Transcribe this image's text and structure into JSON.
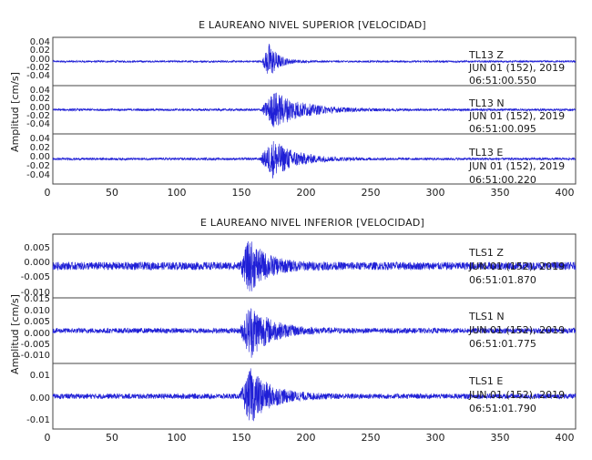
{
  "chart_data": [
    {
      "type": "line",
      "title": "E LAUREANO NIVEL SUPERIOR [VELOCIDAD]",
      "ylabel": "Amplitud [cm/s]",
      "xlim": [
        0,
        420
      ],
      "x_ticks": [
        "0",
        "50",
        "100",
        "150",
        "200",
        "250",
        "300",
        "350",
        "400"
      ],
      "line_color": "#1f1fd6",
      "grid": false,
      "series": [
        {
          "stamp": [
            "TL13   Z",
            "JUN 01 (152), 2019",
            "06:51:00.550"
          ],
          "ylim": [
            -0.05,
            0.05
          ],
          "y_ticks": [
            "0.04",
            "0.02",
            "0.00",
            "-0.02",
            "-0.04"
          ],
          "amplitude_cm_s": 0.04,
          "onset_x": 168,
          "peak_x": 174,
          "decay": 7,
          "noise": 0.05
        },
        {
          "stamp": [
            "TL13   N",
            "JUN 01 (152), 2019",
            "06:51:00.095"
          ],
          "ylim": [
            -0.05,
            0.05
          ],
          "y_ticks": [
            "0.04",
            "0.02",
            "0.00",
            "-0.02",
            "-0.04"
          ],
          "amplitude_cm_s": 0.04,
          "onset_x": 167,
          "peak_x": 178,
          "decay": 22,
          "noise": 0.06
        },
        {
          "stamp": [
            "TL13   E",
            "JUN 01 (152), 2019",
            "06:51:00.220"
          ],
          "ylim": [
            -0.05,
            0.05
          ],
          "y_ticks": [
            "0.04",
            "0.02",
            "0.00",
            "-0.02",
            "-0.04"
          ],
          "amplitude_cm_s": 0.04,
          "onset_x": 166,
          "peak_x": 177,
          "decay": 18,
          "noise": 0.06
        }
      ]
    },
    {
      "type": "line",
      "title": "E LAUREANO NIVEL INFERIOR [VELOCIDAD]",
      "ylabel": "Amplitud [cm/s]",
      "xlim": [
        0,
        420
      ],
      "x_ticks": [
        "0",
        "50",
        "100",
        "150",
        "200",
        "250",
        "300",
        "350",
        "400"
      ],
      "line_color": "#1f1fd6",
      "grid": false,
      "series": [
        {
          "stamp": [
            "TLS1   Z",
            "JUN 01 (152), 2019",
            "06:51:01.870"
          ],
          "ylim": [
            -0.009,
            0.009
          ],
          "y_ticks": [
            "0.005",
            "0.000",
            "-0.005",
            "-0.010"
          ],
          "amplitude_cm_s": 0.008,
          "onset_x": 150,
          "peak_x": 158,
          "decay": 14,
          "noise": 0.14
        },
        {
          "stamp": [
            "TLS1   N",
            "JUN 01 (152), 2019",
            "06:51:01.775"
          ],
          "ylim": [
            -0.016,
            0.016
          ],
          "y_ticks": [
            "0.015",
            "0.010",
            "0.005",
            "0.000",
            "-0.005",
            "-0.010"
          ],
          "amplitude_cm_s": 0.014,
          "onset_x": 150,
          "peak_x": 159,
          "decay": 16,
          "noise": 0.09
        },
        {
          "stamp": [
            "TLS1   E",
            "JUN 01 (152), 2019",
            "06:51:01.790"
          ],
          "ylim": [
            -0.016,
            0.016
          ],
          "y_ticks": [
            "0.01",
            "0.00",
            "-0.01"
          ],
          "amplitude_cm_s": 0.014,
          "onset_x": 150,
          "peak_x": 159,
          "decay": 16,
          "noise": 0.09
        }
      ]
    }
  ]
}
